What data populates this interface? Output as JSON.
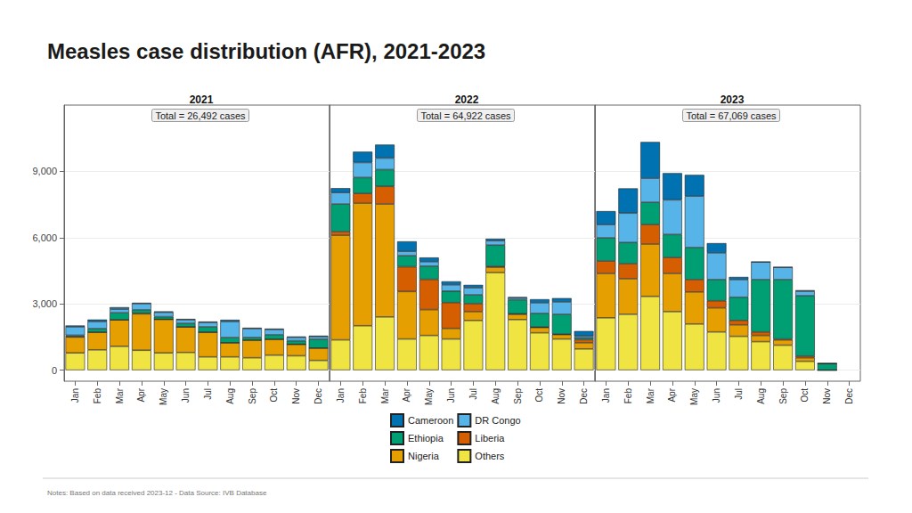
{
  "chart_data": {
    "type": "bar",
    "title": "Measles case distribution (AFR), 2021-2023",
    "note": "Notes: Based on data received 2023-12 - Data Source: IVB Database",
    "stacked": true,
    "grid": true,
    "legend": "bottom",
    "ylim": [
      -500,
      12000
    ],
    "yticks": [
      0,
      {
        "value": 3000,
        "label": "3,000"
      },
      {
        "value": 6000,
        "label": "6,000"
      },
      {
        "value": 9000,
        "label": "9,000"
      }
    ],
    "panels": [
      {
        "subtitle": "2021",
        "annotation": "Total = 26,492 cases",
        "categories": [
          "Jan",
          "Feb",
          "Mar",
          "Apr",
          "May",
          "Jun",
          "Jul",
          "Aug",
          "Sep",
          "Oct",
          "Nov",
          "Dec"
        ],
        "series": [
          {
            "name": "Others",
            "color": "#f0e442",
            "values": [
              780,
              920,
              1080,
              900,
              780,
              800,
              600,
              600,
              560,
              680,
              650,
              440
            ]
          },
          {
            "name": "Nigeria",
            "color": "#e69f00",
            "values": [
              720,
              800,
              1200,
              1650,
              1520,
              1160,
              1120,
              640,
              800,
              720,
              520,
              560
            ]
          },
          {
            "name": "Liberia",
            "color": "#d55e00",
            "values": [
              20,
              0,
              0,
              30,
              0,
              0,
              0,
              0,
              0,
              0,
              0,
              0
            ]
          },
          {
            "name": "Ethiopia",
            "color": "#009e73",
            "values": [
              60,
              160,
              320,
              150,
              120,
              160,
              240,
              240,
              120,
              200,
              160,
              400
            ]
          },
          {
            "name": "DR Congo",
            "color": "#56b4e9",
            "values": [
              380,
              320,
              160,
              280,
              200,
              160,
              200,
              720,
              400,
              240,
              160,
              120
            ]
          },
          {
            "name": "Cameroon",
            "color": "#0072b2",
            "values": [
              60,
              90,
              90,
              40,
              40,
              40,
              40,
              80,
              40,
              40,
              30,
              40
            ]
          }
        ]
      },
      {
        "subtitle": "2022",
        "annotation": "Total = 64,922 cases",
        "categories": [
          "Jan",
          "Feb",
          "Mar",
          "Apr",
          "May",
          "Jun",
          "Jul",
          "Aug",
          "Sep",
          "Oct",
          "Nov",
          "Dec"
        ],
        "series": [
          {
            "name": "Others",
            "color": "#f0e442",
            "values": [
              1370,
              2010,
              2410,
              1410,
              1570,
              1410,
              2250,
              4420,
              2290,
              1690,
              1410,
              960
            ]
          },
          {
            "name": "Nigeria",
            "color": "#e69f00",
            "values": [
              4740,
              5550,
              5110,
              2150,
              1170,
              480,
              400,
              240,
              240,
              240,
              200,
              280
            ]
          },
          {
            "name": "Liberia",
            "color": "#d55e00",
            "values": [
              160,
              440,
              800,
              1120,
              1370,
              1170,
              360,
              40,
              20,
              20,
              20,
              140
            ]
          },
          {
            "name": "Ethiopia",
            "color": "#009e73",
            "values": [
              1250,
              720,
              760,
              500,
              600,
              520,
              400,
              960,
              640,
              620,
              900,
              80
            ]
          },
          {
            "name": "DR Congo",
            "color": "#56b4e9",
            "values": [
              520,
              680,
              520,
              200,
              200,
              280,
              320,
              200,
              80,
              480,
              560,
              80
            ]
          },
          {
            "name": "Cameroon",
            "color": "#0072b2",
            "values": [
              200,
              490,
              610,
              450,
              190,
              160,
              130,
              90,
              40,
              160,
              170,
              230
            ]
          }
        ]
      },
      {
        "subtitle": "2023",
        "annotation": "Total = 67,069 cases",
        "categories": [
          "Jan",
          "Feb",
          "Mar",
          "Apr",
          "May",
          "Jun",
          "Jul",
          "Aug",
          "Sep",
          "Oct",
          "Nov",
          "Dec"
        ],
        "series": [
          {
            "name": "Others",
            "color": "#f0e442",
            "values": [
              2370,
              2530,
              3340,
              2650,
              2090,
              1730,
              1530,
              1290,
              1130,
              400,
              0,
              null
            ]
          },
          {
            "name": "Nigeria",
            "color": "#e69f00",
            "values": [
              2010,
              1610,
              2370,
              1730,
              1450,
              1090,
              520,
              280,
              240,
              160,
              0,
              null
            ]
          },
          {
            "name": "Liberia",
            "color": "#d55e00",
            "values": [
              560,
              680,
              880,
              720,
              560,
              320,
              200,
              160,
              40,
              80,
              0,
              null
            ]
          },
          {
            "name": "Ethiopia",
            "color": "#009e73",
            "values": [
              1050,
              960,
              1010,
              1040,
              1450,
              960,
              1050,
              2370,
              2690,
              2730,
              300,
              null
            ]
          },
          {
            "name": "DR Congo",
            "color": "#56b4e9",
            "values": [
              600,
              1330,
              1090,
              1570,
              2330,
              1210,
              800,
              800,
              560,
              200,
              0,
              null
            ]
          },
          {
            "name": "Cameroon",
            "color": "#0072b2",
            "values": [
              610,
              1120,
              1640,
              1210,
              960,
              440,
              120,
              0,
              0,
              50,
              0,
              null
            ]
          }
        ]
      }
    ]
  }
}
